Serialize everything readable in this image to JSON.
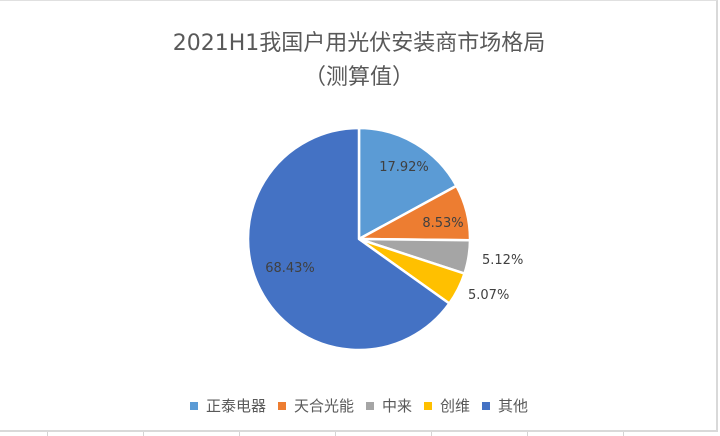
{
  "chart": {
    "title_line1": "2021H1我国户用光伏安装商市场格局",
    "title_line2": "（测算值）"
  },
  "chart_data": {
    "type": "pie",
    "title": "2021H1我国户用光伏安装商市场格局（测算值）",
    "categories": [
      "正泰电器",
      "天合光能",
      "中来",
      "创维",
      "其他"
    ],
    "values": [
      17.92,
      8.53,
      5.12,
      5.07,
      68.43
    ],
    "labels": [
      "17.92%",
      "8.53%",
      "5.12%",
      "5.07%",
      "68.43%"
    ],
    "colors": [
      "#5b9bd5",
      "#ed7d31",
      "#a5a5a5",
      "#ffc000",
      "#4472c4"
    ],
    "start_angle": 0,
    "direction": "clockwise",
    "legend_position": "bottom",
    "label_color": "#404040"
  },
  "legend": {
    "items": [
      {
        "label": "正泰电器",
        "color": "#5b9bd5"
      },
      {
        "label": "天合光能",
        "color": "#ed7d31"
      },
      {
        "label": "中来",
        "color": "#a5a5a5"
      },
      {
        "label": "创维",
        "color": "#ffc000"
      },
      {
        "label": "其他",
        "color": "#4472c4"
      }
    ]
  }
}
